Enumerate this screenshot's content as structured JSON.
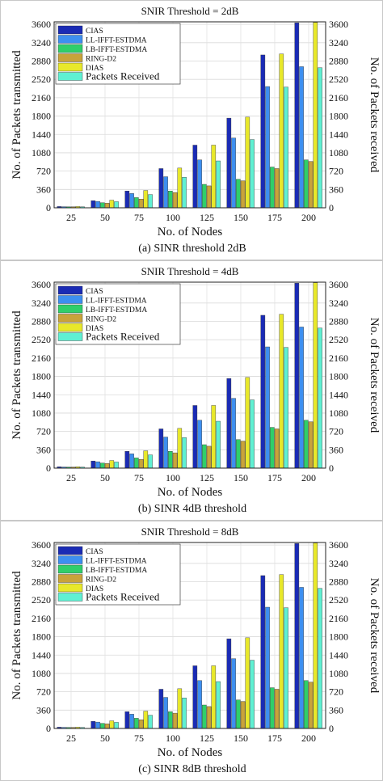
{
  "chart_data": [
    {
      "type": "bar",
      "title": "SNIR Threshold = 2dB",
      "xlabel": "No. of Nodes",
      "ylabel": "No. of Packets transmitted",
      "ylabel_right": "No. of Packets received",
      "categories": [
        "25",
        "50",
        "75",
        "100",
        "125",
        "150",
        "175",
        "200"
      ],
      "yticks": [
        0,
        360,
        720,
        1080,
        1440,
        1800,
        2160,
        2520,
        2880,
        3240,
        3600
      ],
      "ylim": [
        0,
        3650
      ],
      "caption": "(a) SINR threshold 2dB",
      "legend_position": "top-left",
      "grid": true,
      "series": [
        {
          "name": "CIAS",
          "color": "#1a2bb5",
          "values": [
            25,
            140,
            330,
            770,
            1230,
            1760,
            3000,
            3630
          ]
        },
        {
          "name": "LL-IFFT-ESTDMA",
          "color": "#3d8ff0",
          "values": [
            22,
            125,
            280,
            610,
            940,
            1370,
            2380,
            2770
          ]
        },
        {
          "name": "LB-IFFT-ESTDMA",
          "color": "#2fcf6a",
          "values": [
            20,
            100,
            200,
            330,
            460,
            560,
            800,
            940
          ]
        },
        {
          "name": "RING-D2",
          "color": "#c9a33a",
          "values": [
            20,
            90,
            170,
            300,
            430,
            530,
            770,
            910
          ]
        },
        {
          "name": "DIAS",
          "color": "#e8e82a",
          "values": [
            25,
            150,
            340,
            780,
            1230,
            1780,
            3020,
            3640
          ]
        },
        {
          "name": "Packets Received",
          "color": "#5ff0d2",
          "values": [
            20,
            120,
            260,
            600,
            920,
            1340,
            2370,
            2750
          ]
        }
      ]
    },
    {
      "type": "bar",
      "title": "SNIR Threshold = 4dB",
      "xlabel": "No. of Nodes",
      "ylabel": "No. of Packets transmitted",
      "ylabel_right": "No. of Packets received",
      "categories": [
        "25",
        "50",
        "75",
        "100",
        "125",
        "150",
        "175",
        "200"
      ],
      "yticks": [
        0,
        360,
        720,
        1080,
        1440,
        1800,
        2160,
        2520,
        2880,
        3240,
        3600
      ],
      "ylim": [
        0,
        3650
      ],
      "caption": "(b) SINR 4dB threshold",
      "legend_position": "top-left",
      "grid": true,
      "series": [
        {
          "name": "CIAS",
          "color": "#1a2bb5",
          "values": [
            25,
            140,
            330,
            770,
            1230,
            1760,
            3000,
            3630
          ]
        },
        {
          "name": "LL-IFFT-ESTDMA",
          "color": "#3d8ff0",
          "values": [
            22,
            125,
            280,
            610,
            940,
            1370,
            2380,
            2770
          ]
        },
        {
          "name": "LB-IFFT-ESTDMA",
          "color": "#2fcf6a",
          "values": [
            20,
            100,
            200,
            330,
            460,
            560,
            800,
            940
          ]
        },
        {
          "name": "RING-D2",
          "color": "#c9a33a",
          "values": [
            20,
            90,
            170,
            300,
            430,
            530,
            770,
            910
          ]
        },
        {
          "name": "DIAS",
          "color": "#e8e82a",
          "values": [
            25,
            150,
            340,
            780,
            1230,
            1780,
            3020,
            3640
          ]
        },
        {
          "name": "Packets Received",
          "color": "#5ff0d2",
          "values": [
            20,
            120,
            260,
            600,
            920,
            1340,
            2370,
            2750
          ]
        }
      ]
    },
    {
      "type": "bar",
      "title": "SNIR Threshold = 8dB",
      "xlabel": "No. of Nodes",
      "ylabel": "No. of Packets transmitted",
      "ylabel_right": "No. of Packets received",
      "categories": [
        "25",
        "50",
        "75",
        "100",
        "125",
        "150",
        "175",
        "200"
      ],
      "yticks": [
        0,
        360,
        720,
        1080,
        1440,
        1800,
        2160,
        2520,
        2880,
        3240,
        3600
      ],
      "ylim": [
        0,
        3650
      ],
      "caption": "(c) SINR 8dB threshold",
      "legend_position": "top-left",
      "grid": true,
      "series": [
        {
          "name": "CIAS",
          "color": "#1a2bb5",
          "values": [
            25,
            140,
            330,
            770,
            1230,
            1760,
            3000,
            3630
          ]
        },
        {
          "name": "LL-IFFT-ESTDMA",
          "color": "#3d8ff0",
          "values": [
            22,
            125,
            280,
            610,
            940,
            1370,
            2380,
            2770
          ]
        },
        {
          "name": "LB-IFFT-ESTDMA",
          "color": "#2fcf6a",
          "values": [
            20,
            100,
            200,
            330,
            460,
            560,
            800,
            940
          ]
        },
        {
          "name": "RING-D2",
          "color": "#c9a33a",
          "values": [
            20,
            90,
            170,
            300,
            430,
            530,
            770,
            910
          ]
        },
        {
          "name": "DIAS",
          "color": "#e8e82a",
          "values": [
            25,
            150,
            340,
            780,
            1230,
            1780,
            3020,
            3640
          ]
        },
        {
          "name": "Packets Received",
          "color": "#5ff0d2",
          "values": [
            20,
            120,
            260,
            600,
            920,
            1340,
            2370,
            2750
          ]
        }
      ]
    }
  ]
}
